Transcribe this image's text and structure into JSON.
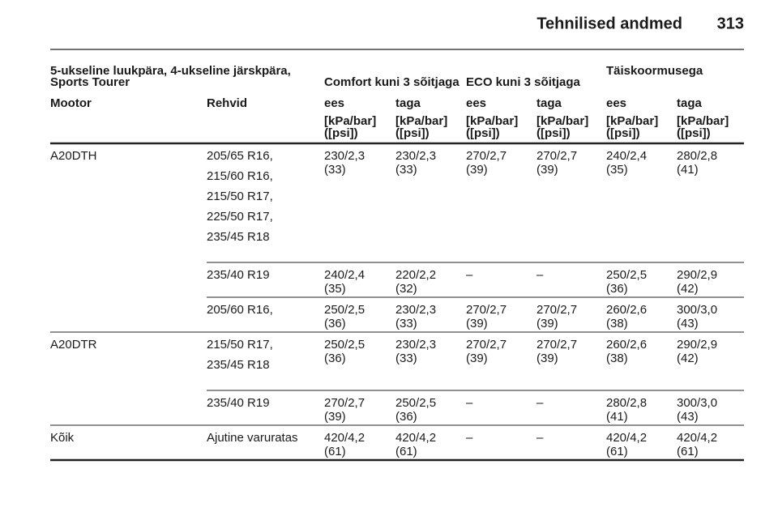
{
  "header": {
    "title": "Tehnilised andmed",
    "page": "313"
  },
  "table": {
    "group_headers": {
      "model": [
        "5-ukseline luukpära, 4-ukseline järskpära,",
        "Sports Tourer"
      ],
      "comfort": "Comfort kuni 3 sõitjaga",
      "eco": "ECO kuni 3 sõitjaga",
      "full": "Täiskoormusega"
    },
    "columns": [
      "Mootor",
      "Rehvid",
      "ees",
      "taga",
      "ees",
      "taga",
      "ees",
      "taga"
    ],
    "units": [
      [
        "[kPa/bar]",
        "([psi])"
      ],
      [
        "[kPa/bar]",
        "([psi])"
      ],
      [
        "[kPa/bar]",
        "([psi])"
      ],
      [
        "[kPa/bar]",
        "([psi])"
      ],
      [
        "[kPa/bar]",
        "([psi])"
      ],
      [
        "[kPa/bar]",
        "([psi])"
      ]
    ],
    "rows": [
      {
        "engine": "A20DTH",
        "tires": [
          "205/65 R16,",
          "215/60 R16,",
          "215/50 R17,",
          "225/50 R17,",
          "235/45 R18"
        ],
        "cells": [
          [
            "230/2,3",
            "(33)"
          ],
          [
            "230/2,3",
            "(33)"
          ],
          [
            "270/2,7",
            "(39)"
          ],
          [
            "270/2,7",
            "(39)"
          ],
          [
            "240/2,4",
            "(35)"
          ],
          [
            "280/2,8",
            "(41)"
          ]
        ]
      },
      {
        "tires": [
          "235/40 R19"
        ],
        "cells": [
          [
            "240/2,4",
            "(35)"
          ],
          [
            "220/2,2",
            "(32)"
          ],
          [
            "–"
          ],
          [
            "–"
          ],
          [
            "250/2,5",
            "(36)"
          ],
          [
            "290/2,9",
            "(42)"
          ]
        ]
      },
      {
        "tires": [
          "205/60 R16,"
        ],
        "cells": [
          [
            "250/2,5",
            "(36)"
          ],
          [
            "230/2,3",
            "(33)"
          ],
          [
            "270/2,7",
            "(39)"
          ],
          [
            "270/2,7",
            "(39)"
          ],
          [
            "260/2,6",
            "(38)"
          ],
          [
            "300/3,0",
            "(43)"
          ]
        ]
      },
      {
        "engine": "A20DTR",
        "tires": [
          "215/50 R17,",
          "235/45 R18"
        ],
        "cells": [
          [
            "250/2,5",
            "(36)"
          ],
          [
            "230/2,3",
            "(33)"
          ],
          [
            "270/2,7",
            "(39)"
          ],
          [
            "270/2,7",
            "(39)"
          ],
          [
            "260/2,6",
            "(38)"
          ],
          [
            "290/2,9",
            "(42)"
          ]
        ]
      },
      {
        "tires": [
          "235/40 R19"
        ],
        "cells": [
          [
            "270/2,7",
            "(39)"
          ],
          [
            "250/2,5",
            "(36)"
          ],
          [
            "–"
          ],
          [
            "–"
          ],
          [
            "280/2,8",
            "(41)"
          ],
          [
            "300/3,0",
            "(43)"
          ]
        ]
      },
      {
        "engine": "Kõik",
        "tires": [
          "Ajutine varuratas"
        ],
        "cells": [
          [
            "420/4,2",
            "(61)"
          ],
          [
            "420/4,2",
            "(61)"
          ],
          [
            "–"
          ],
          [
            "–"
          ],
          [
            "420/4,2",
            "(61)"
          ],
          [
            "420/4,2",
            "(61)"
          ]
        ]
      }
    ]
  }
}
